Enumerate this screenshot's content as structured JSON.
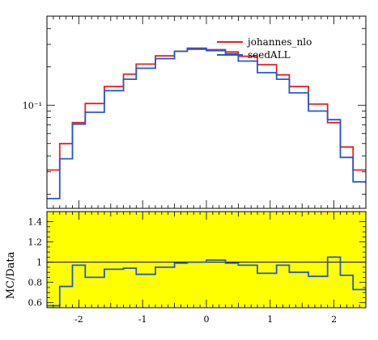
{
  "colors": {
    "ratio_band": "#ffff00",
    "series_red": "#e8211f",
    "series_blue": "#2457d6"
  },
  "chart_data": [
    {
      "type": "line",
      "step": true,
      "yscale": "log",
      "x_edges": [
        -2.5,
        -2.3,
        -2.1,
        -1.9,
        -1.6,
        -1.3,
        -1.1,
        -0.8,
        -0.5,
        -0.3,
        0.0,
        0.3,
        0.5,
        0.8,
        1.1,
        1.3,
        1.6,
        1.9,
        2.1,
        2.3,
        2.5
      ],
      "series": [
        {
          "name": "johannes_nlo",
          "color": "#e8211f",
          "values": [
            0.031,
            0.05,
            0.073,
            0.103,
            0.14,
            0.175,
            0.21,
            0.244,
            0.265,
            0.275,
            0.273,
            0.262,
            0.242,
            0.208,
            0.173,
            0.14,
            0.102,
            0.073,
            0.047,
            0.031
          ]
        },
        {
          "name": "seedALL",
          "color": "#2457d6",
          "values": [
            0.0185,
            0.038,
            0.071,
            0.088,
            0.13,
            0.16,
            0.195,
            0.232,
            0.265,
            0.28,
            0.268,
            0.253,
            0.222,
            0.18,
            0.16,
            0.125,
            0.09,
            0.077,
            0.039,
            0.025
          ]
        }
      ],
      "ytick_labels": [
        "10⁻¹"
      ],
      "ytick_values": [
        0.1
      ],
      "legend": "top-right"
    },
    {
      "type": "line",
      "step": true,
      "ylabel": "MC/Data",
      "ylim": [
        0.55,
        1.5
      ],
      "ytick_labels": [
        "0.6",
        "0.8",
        "1",
        "1.2",
        "1.4"
      ],
      "ytick_values": [
        0.6,
        0.8,
        1.0,
        1.2,
        1.4
      ],
      "x_edges": [
        -2.5,
        -2.3,
        -2.1,
        -1.9,
        -1.6,
        -1.3,
        -1.1,
        -0.8,
        -0.5,
        -0.3,
        0.0,
        0.3,
        0.5,
        0.8,
        1.1,
        1.3,
        1.6,
        1.9,
        2.1,
        2.3,
        2.5
      ],
      "xlim": [
        -2.5,
        2.5
      ],
      "xtick_labels": [
        "-2",
        "-1",
        "0",
        "1",
        "2"
      ],
      "xtick_values": [
        -2,
        -1,
        0,
        1,
        2
      ],
      "reference_line": 1.0,
      "series": [
        {
          "color": "#2457d6",
          "values": [
            0.57,
            0.76,
            0.97,
            0.85,
            0.93,
            0.94,
            0.88,
            0.95,
            0.99,
            1.0,
            1.02,
            0.99,
            0.97,
            0.89,
            0.97,
            0.9,
            0.86,
            1.05,
            0.87,
            0.73
          ]
        }
      ]
    }
  ]
}
